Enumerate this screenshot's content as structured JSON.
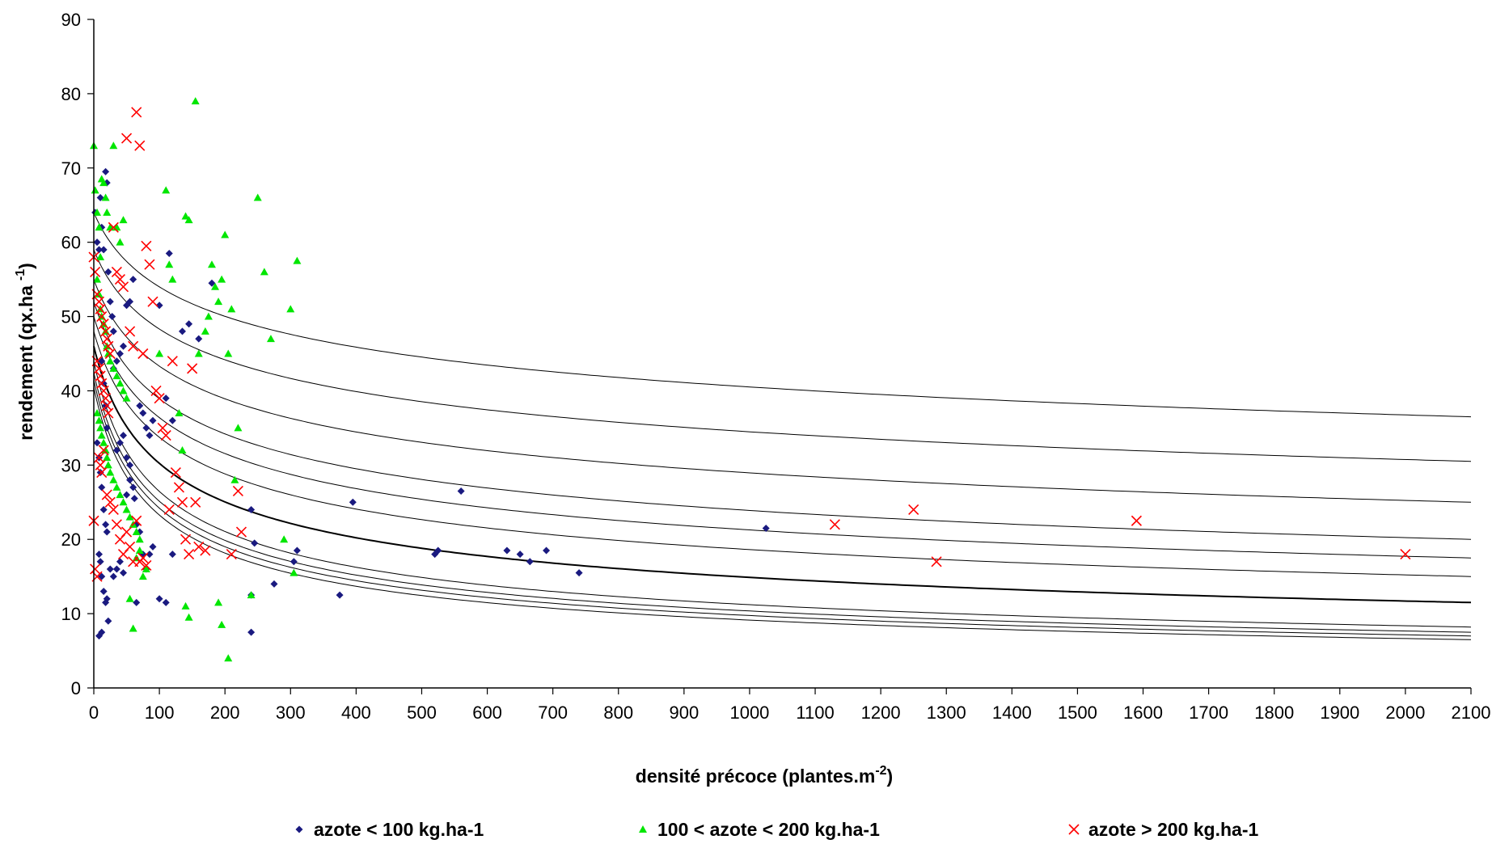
{
  "chart_data": {
    "type": "scatter",
    "title": "",
    "xlabel": "densité précoce (plantes.m",
    "xlabel_sup": "-2",
    "xlabel_end": ")",
    "ylabel": "rendement (qx.ha",
    "ylabel_sup": "-1",
    "ylabel_end": ")",
    "xlim": [
      0,
      2100
    ],
    "ylim": [
      0,
      90
    ],
    "x_ticks": [
      0,
      100,
      200,
      300,
      400,
      500,
      600,
      700,
      800,
      900,
      1000,
      1100,
      1200,
      1300,
      1400,
      1500,
      1600,
      1700,
      1800,
      1900,
      2000,
      2100
    ],
    "y_ticks": [
      0,
      10,
      20,
      30,
      40,
      50,
      60,
      70,
      80,
      90
    ],
    "grid": false,
    "legend_position": "bottom",
    "series": [
      {
        "name": "azote < 100 kg.ha-1",
        "marker": "diamond",
        "color": "#1a1a80",
        "points": [
          [
            2,
            64
          ],
          [
            5,
            60
          ],
          [
            8,
            59
          ],
          [
            10,
            66
          ],
          [
            12,
            62
          ],
          [
            15,
            59
          ],
          [
            18,
            69.5
          ],
          [
            20,
            68
          ],
          [
            22,
            56
          ],
          [
            25,
            52
          ],
          [
            28,
            50
          ],
          [
            30,
            48
          ],
          [
            12,
            44
          ],
          [
            15,
            41
          ],
          [
            18,
            38
          ],
          [
            20,
            35
          ],
          [
            5,
            33
          ],
          [
            8,
            31
          ],
          [
            10,
            29
          ],
          [
            12,
            27
          ],
          [
            15,
            24
          ],
          [
            18,
            22
          ],
          [
            20,
            21
          ],
          [
            8,
            18
          ],
          [
            10,
            17
          ],
          [
            12,
            15
          ],
          [
            15,
            13
          ],
          [
            18,
            11.5
          ],
          [
            20,
            12
          ],
          [
            22,
            9
          ],
          [
            8,
            7
          ],
          [
            12,
            7.5
          ],
          [
            25,
            16
          ],
          [
            30,
            15
          ],
          [
            35,
            16
          ],
          [
            40,
            17
          ],
          [
            45,
            15.5
          ],
          [
            50,
            26
          ],
          [
            55,
            28
          ],
          [
            60,
            27
          ],
          [
            62,
            25.5
          ],
          [
            65,
            22
          ],
          [
            70,
            21
          ],
          [
            75,
            18
          ],
          [
            80,
            16
          ],
          [
            35,
            32
          ],
          [
            40,
            33
          ],
          [
            45,
            34
          ],
          [
            50,
            31
          ],
          [
            55,
            30
          ],
          [
            30,
            43
          ],
          [
            35,
            44
          ],
          [
            40,
            45
          ],
          [
            45,
            46
          ],
          [
            50,
            51.5
          ],
          [
            55,
            52
          ],
          [
            60,
            55
          ],
          [
            70,
            38
          ],
          [
            75,
            37
          ],
          [
            80,
            35
          ],
          [
            85,
            34
          ],
          [
            90,
            36
          ],
          [
            100,
            51.5
          ],
          [
            110,
            39
          ],
          [
            115,
            58.5
          ],
          [
            120,
            36
          ],
          [
            135,
            48
          ],
          [
            145,
            49
          ],
          [
            160,
            47
          ],
          [
            180,
            54.5
          ],
          [
            100,
            12
          ],
          [
            110,
            11.5
          ],
          [
            120,
            18
          ],
          [
            65,
            11.5
          ],
          [
            85,
            18
          ],
          [
            90,
            19
          ],
          [
            240,
            12.5
          ],
          [
            240,
            7.5
          ],
          [
            245,
            19.5
          ],
          [
            240,
            24
          ],
          [
            275,
            14
          ],
          [
            305,
            17
          ],
          [
            310,
            18.5
          ],
          [
            375,
            12.5
          ],
          [
            395,
            25
          ],
          [
            520,
            18
          ],
          [
            525,
            18.5
          ],
          [
            560,
            26.5
          ],
          [
            630,
            18.5
          ],
          [
            650,
            18
          ],
          [
            665,
            17
          ],
          [
            690,
            18.5
          ],
          [
            740,
            15.5
          ],
          [
            1025,
            21.5
          ]
        ]
      },
      {
        "name": "100 < azote < 200 kg.ha-1",
        "marker": "triangle",
        "color": "#00e600",
        "points": [
          [
            0,
            73
          ],
          [
            2,
            67
          ],
          [
            5,
            64
          ],
          [
            8,
            62
          ],
          [
            10,
            58
          ],
          [
            12,
            68.5
          ],
          [
            15,
            68
          ],
          [
            18,
            66
          ],
          [
            20,
            64
          ],
          [
            25,
            62
          ],
          [
            30,
            73
          ],
          [
            35,
            62
          ],
          [
            40,
            60
          ],
          [
            45,
            63
          ],
          [
            5,
            55
          ],
          [
            8,
            53
          ],
          [
            10,
            51
          ],
          [
            12,
            50
          ],
          [
            15,
            49
          ],
          [
            18,
            48
          ],
          [
            20,
            46
          ],
          [
            22,
            45
          ],
          [
            25,
            44
          ],
          [
            30,
            43
          ],
          [
            35,
            42
          ],
          [
            40,
            41
          ],
          [
            45,
            40
          ],
          [
            50,
            39
          ],
          [
            5,
            37
          ],
          [
            8,
            36
          ],
          [
            10,
            35
          ],
          [
            12,
            34
          ],
          [
            15,
            33
          ],
          [
            18,
            32
          ],
          [
            20,
            31
          ],
          [
            22,
            30
          ],
          [
            25,
            29
          ],
          [
            30,
            28
          ],
          [
            35,
            27
          ],
          [
            40,
            26
          ],
          [
            45,
            25
          ],
          [
            50,
            24
          ],
          [
            55,
            23
          ],
          [
            60,
            22
          ],
          [
            65,
            21
          ],
          [
            70,
            20
          ],
          [
            75,
            15
          ],
          [
            80,
            16
          ],
          [
            55,
            12
          ],
          [
            60,
            8
          ],
          [
            65,
            17.5
          ],
          [
            70,
            18.5
          ],
          [
            100,
            45
          ],
          [
            110,
            67
          ],
          [
            115,
            57
          ],
          [
            120,
            55
          ],
          [
            130,
            37
          ],
          [
            135,
            32
          ],
          [
            140,
            63.5
          ],
          [
            145,
            63
          ],
          [
            155,
            79
          ],
          [
            160,
            45
          ],
          [
            170,
            48
          ],
          [
            175,
            50
          ],
          [
            180,
            57
          ],
          [
            185,
            54
          ],
          [
            190,
            52
          ],
          [
            195,
            55
          ],
          [
            200,
            61
          ],
          [
            205,
            45
          ],
          [
            210,
            51
          ],
          [
            215,
            28
          ],
          [
            220,
            35
          ],
          [
            250,
            66
          ],
          [
            260,
            56
          ],
          [
            270,
            47
          ],
          [
            300,
            51
          ],
          [
            310,
            57.5
          ],
          [
            140,
            11
          ],
          [
            145,
            9.5
          ],
          [
            190,
            11.5
          ],
          [
            195,
            8.5
          ],
          [
            205,
            4
          ],
          [
            240,
            12.5
          ],
          [
            290,
            20
          ],
          [
            305,
            15.5
          ]
        ]
      },
      {
        "name": "azote > 200 kg.ha-1",
        "marker": "cross",
        "color": "#ff0000",
        "points": [
          [
            0,
            58
          ],
          [
            2,
            56
          ],
          [
            5,
            53
          ],
          [
            8,
            52
          ],
          [
            10,
            51
          ],
          [
            12,
            50
          ],
          [
            15,
            49
          ],
          [
            18,
            48
          ],
          [
            20,
            47
          ],
          [
            22,
            46
          ],
          [
            25,
            45
          ],
          [
            5,
            44
          ],
          [
            8,
            43
          ],
          [
            10,
            42
          ],
          [
            12,
            41
          ],
          [
            15,
            40
          ],
          [
            18,
            39
          ],
          [
            20,
            38
          ],
          [
            22,
            37
          ],
          [
            0,
            22.5
          ],
          [
            2,
            16
          ],
          [
            5,
            15
          ],
          [
            8,
            31
          ],
          [
            10,
            30
          ],
          [
            12,
            29
          ],
          [
            15,
            32
          ],
          [
            20,
            26
          ],
          [
            25,
            25
          ],
          [
            30,
            24
          ],
          [
            35,
            22
          ],
          [
            40,
            20
          ],
          [
            45,
            18
          ],
          [
            50,
            21
          ],
          [
            55,
            19
          ],
          [
            60,
            17
          ],
          [
            65,
            22.5
          ],
          [
            70,
            17
          ],
          [
            75,
            17.5
          ],
          [
            80,
            16.5
          ],
          [
            30,
            62
          ],
          [
            35,
            56
          ],
          [
            40,
            55
          ],
          [
            45,
            54
          ],
          [
            50,
            74
          ],
          [
            55,
            48
          ],
          [
            60,
            46
          ],
          [
            65,
            77.5
          ],
          [
            70,
            73
          ],
          [
            75,
            45
          ],
          [
            80,
            59.5
          ],
          [
            85,
            57
          ],
          [
            90,
            52
          ],
          [
            95,
            40
          ],
          [
            100,
            39
          ],
          [
            105,
            35
          ],
          [
            110,
            34
          ],
          [
            115,
            24
          ],
          [
            120,
            44
          ],
          [
            125,
            29
          ],
          [
            130,
            27
          ],
          [
            135,
            25
          ],
          [
            140,
            20
          ],
          [
            145,
            18
          ],
          [
            150,
            43
          ],
          [
            155,
            25
          ],
          [
            160,
            19
          ],
          [
            170,
            18.5
          ],
          [
            210,
            18
          ],
          [
            220,
            26.5
          ],
          [
            225,
            21
          ],
          [
            1130,
            22
          ],
          [
            1250,
            24
          ],
          [
            1285,
            17
          ],
          [
            1590,
            22.5
          ],
          [
            2000,
            18
          ]
        ]
      }
    ],
    "curves": [
      {
        "y0": 64,
        "y_end": 36.5
      },
      {
        "y0": 59,
        "y_end": 30.5
      },
      {
        "y0": 55,
        "y_end": 25
      },
      {
        "y0": 52,
        "y_end": 20
      },
      {
        "y0": 50,
        "y_end": 17.5
      },
      {
        "y0": 48,
        "y_end": 15
      },
      {
        "y0": 46,
        "y_end": 11.5
      },
      {
        "y0": 44,
        "y_end": 8.2
      },
      {
        "y0": 42.5,
        "y_end": 7.5
      },
      {
        "y0": 41.5,
        "y_end": 7
      },
      {
        "y0": 40.5,
        "y_end": 6.5
      }
    ]
  }
}
